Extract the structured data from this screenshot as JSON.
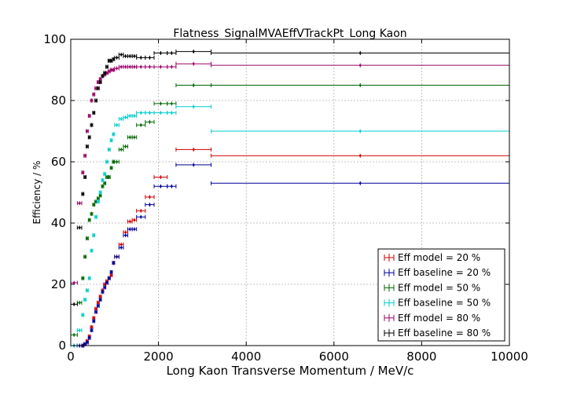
{
  "chart_data": {
    "type": "scatter",
    "title": "Flatness_SignalMVAEffVTrackPt_Long Kaon",
    "xlabel": "Long Kaon Transverse Momentum / MeV/c",
    "ylabel": "Efficiency / %",
    "xlim": [
      0,
      10000
    ],
    "ylim": [
      0,
      100
    ],
    "xticks": [
      "0",
      "2000",
      "4000",
      "6000",
      "8000",
      "10000"
    ],
    "yticks": [
      "0",
      "20",
      "40",
      "60",
      "80",
      "100"
    ],
    "xtick_values": [
      0,
      2000,
      4000,
      6000,
      8000,
      10000
    ],
    "ytick_values": [
      0,
      20,
      40,
      60,
      80,
      100
    ],
    "grid": true,
    "legend_position": "lower-right",
    "x_bins": [
      [
        0,
        150
      ],
      [
        150,
        250
      ],
      [
        250,
        300
      ],
      [
        300,
        350
      ],
      [
        350,
        400
      ],
      [
        400,
        450
      ],
      [
        450,
        500
      ],
      [
        500,
        550
      ],
      [
        550,
        600
      ],
      [
        600,
        650
      ],
      [
        650,
        700
      ],
      [
        700,
        750
      ],
      [
        750,
        800
      ],
      [
        800,
        850
      ],
      [
        850,
        900
      ],
      [
        900,
        950
      ],
      [
        950,
        1000
      ],
      [
        1000,
        1100
      ],
      [
        1100,
        1200
      ],
      [
        1200,
        1300
      ],
      [
        1300,
        1400
      ],
      [
        1400,
        1500
      ],
      [
        1500,
        1700
      ],
      [
        1700,
        1900
      ],
      [
        1900,
        2200
      ],
      [
        2200,
        2400
      ],
      [
        2400,
        3200
      ],
      [
        3200,
        10000
      ]
    ],
    "series": [
      {
        "name": "Eff model = 20 %",
        "color": "#cc0000",
        "bins": [
          [
            0,
            150,
            0
          ],
          [
            150,
            250,
            0
          ],
          [
            250,
            300,
            0
          ],
          [
            300,
            350,
            0.5
          ],
          [
            350,
            400,
            1.5
          ],
          [
            400,
            450,
            3
          ],
          [
            450,
            500,
            6
          ],
          [
            500,
            550,
            9
          ],
          [
            550,
            600,
            12
          ],
          [
            600,
            650,
            14
          ],
          [
            650,
            700,
            16
          ],
          [
            700,
            750,
            18
          ],
          [
            750,
            800,
            20
          ],
          [
            800,
            850,
            21
          ],
          [
            850,
            900,
            22
          ],
          [
            900,
            950,
            23
          ],
          [
            950,
            1000,
            27
          ],
          [
            1000,
            1100,
            29
          ],
          [
            1100,
            1200,
            33
          ],
          [
            1200,
            1300,
            37
          ],
          [
            1300,
            1400,
            40.5
          ],
          [
            1400,
            1500,
            41
          ],
          [
            1500,
            1700,
            44
          ],
          [
            1700,
            1900,
            48.5
          ],
          [
            1900,
            2200,
            55
          ],
          [
            2400,
            3200,
            64
          ],
          [
            3200,
            10000,
            62
          ]
        ]
      },
      {
        "name": "Eff baseline = 20 %",
        "color": "#000099",
        "bins": [
          [
            0,
            150,
            0
          ],
          [
            150,
            250,
            0
          ],
          [
            250,
            300,
            0
          ],
          [
            300,
            350,
            0.5
          ],
          [
            350,
            400,
            1
          ],
          [
            400,
            450,
            2.5
          ],
          [
            450,
            500,
            5
          ],
          [
            500,
            550,
            8
          ],
          [
            550,
            600,
            11
          ],
          [
            600,
            650,
            13
          ],
          [
            650,
            700,
            15
          ],
          [
            700,
            750,
            17.5
          ],
          [
            750,
            800,
            19
          ],
          [
            800,
            850,
            20.5
          ],
          [
            850,
            900,
            22
          ],
          [
            900,
            950,
            24
          ],
          [
            950,
            1000,
            27
          ],
          [
            1000,
            1100,
            29
          ],
          [
            1100,
            1200,
            32
          ],
          [
            1200,
            1300,
            36
          ],
          [
            1300,
            1400,
            38
          ],
          [
            1400,
            1500,
            38
          ],
          [
            1500,
            1700,
            42
          ],
          [
            1700,
            1900,
            46
          ],
          [
            1900,
            2200,
            52
          ],
          [
            2200,
            2400,
            52
          ],
          [
            2400,
            3200,
            59
          ],
          [
            3200,
            10000,
            53
          ]
        ]
      },
      {
        "name": "Eff model = 50 %",
        "color": "#006600",
        "bins": [
          [
            0,
            150,
            3.5
          ],
          [
            150,
            250,
            14
          ],
          [
            250,
            300,
            22
          ],
          [
            300,
            350,
            29
          ],
          [
            350,
            400,
            35
          ],
          [
            400,
            450,
            41
          ],
          [
            450,
            500,
            43
          ],
          [
            500,
            550,
            46
          ],
          [
            550,
            600,
            47
          ],
          [
            600,
            650,
            48
          ],
          [
            650,
            700,
            49
          ],
          [
            700,
            750,
            52
          ],
          [
            750,
            800,
            53
          ],
          [
            800,
            850,
            55
          ],
          [
            850,
            900,
            55
          ],
          [
            900,
            950,
            58
          ],
          [
            950,
            1000,
            60
          ],
          [
            1000,
            1100,
            60
          ],
          [
            1100,
            1200,
            64
          ],
          [
            1200,
            1300,
            65
          ],
          [
            1300,
            1400,
            68
          ],
          [
            1400,
            1500,
            68
          ],
          [
            1500,
            1700,
            72
          ],
          [
            1700,
            1900,
            73
          ],
          [
            1900,
            2200,
            79
          ],
          [
            2200,
            2400,
            79
          ],
          [
            2400,
            3200,
            85
          ],
          [
            3200,
            10000,
            85
          ]
        ]
      },
      {
        "name": "Eff baseline = 50 %",
        "color": "#00cccc",
        "bins": [
          [
            0,
            150,
            0
          ],
          [
            150,
            250,
            5
          ],
          [
            250,
            300,
            10
          ],
          [
            300,
            350,
            15
          ],
          [
            350,
            400,
            18
          ],
          [
            400,
            450,
            22
          ],
          [
            450,
            500,
            31
          ],
          [
            500,
            550,
            36
          ],
          [
            550,
            600,
            42
          ],
          [
            600,
            650,
            47
          ],
          [
            650,
            700,
            50
          ],
          [
            700,
            750,
            54
          ],
          [
            750,
            800,
            56
          ],
          [
            800,
            850,
            60
          ],
          [
            850,
            900,
            64
          ],
          [
            900,
            950,
            67
          ],
          [
            950,
            1000,
            69
          ],
          [
            1000,
            1100,
            72
          ],
          [
            1100,
            1200,
            74
          ],
          [
            1200,
            1300,
            74.5
          ],
          [
            1300,
            1400,
            75
          ],
          [
            1400,
            1500,
            75
          ],
          [
            1500,
            1700,
            76
          ],
          [
            1700,
            1900,
            76
          ],
          [
            1900,
            2200,
            76
          ],
          [
            2200,
            2400,
            76
          ],
          [
            2400,
            3200,
            78
          ],
          [
            3200,
            10000,
            70
          ]
        ]
      },
      {
        "name": "Eff model = 80 %",
        "color": "#990066",
        "bins": [
          [
            0,
            150,
            20.5
          ],
          [
            150,
            250,
            46.5
          ],
          [
            250,
            300,
            56.5
          ],
          [
            300,
            350,
            62
          ],
          [
            350,
            400,
            70
          ],
          [
            400,
            450,
            75
          ],
          [
            450,
            500,
            80
          ],
          [
            500,
            550,
            82
          ],
          [
            550,
            600,
            84
          ],
          [
            600,
            650,
            86
          ],
          [
            650,
            700,
            87
          ],
          [
            700,
            750,
            88
          ],
          [
            750,
            800,
            88.5
          ],
          [
            800,
            850,
            89
          ],
          [
            850,
            900,
            89.5
          ],
          [
            900,
            950,
            90
          ],
          [
            950,
            1000,
            90
          ],
          [
            1000,
            1100,
            90.5
          ],
          [
            1100,
            1200,
            91
          ],
          [
            1200,
            1300,
            91
          ],
          [
            1300,
            1400,
            91
          ],
          [
            1400,
            1500,
            91
          ],
          [
            1500,
            1700,
            91
          ],
          [
            1700,
            1900,
            91
          ],
          [
            1900,
            2200,
            91
          ],
          [
            2200,
            2400,
            91
          ],
          [
            2400,
            3200,
            92
          ],
          [
            3200,
            10000,
            91.5
          ]
        ]
      },
      {
        "name": "Eff baseline = 80 %",
        "color": "#000000",
        "bins": [
          [
            0,
            150,
            13.5
          ],
          [
            150,
            250,
            38.5
          ],
          [
            250,
            300,
            49.5
          ],
          [
            300,
            350,
            55
          ],
          [
            350,
            400,
            65
          ],
          [
            400,
            450,
            68
          ],
          [
            450,
            500,
            72
          ],
          [
            500,
            550,
            76
          ],
          [
            550,
            600,
            80
          ],
          [
            600,
            650,
            84
          ],
          [
            650,
            700,
            86
          ],
          [
            700,
            750,
            88
          ],
          [
            750,
            800,
            89
          ],
          [
            800,
            850,
            91
          ],
          [
            850,
            900,
            93
          ],
          [
            900,
            950,
            93
          ],
          [
            950,
            1000,
            93.5
          ],
          [
            1000,
            1100,
            94
          ],
          [
            1100,
            1200,
            95
          ],
          [
            1200,
            1300,
            94.5
          ],
          [
            1300,
            1400,
            94.5
          ],
          [
            1400,
            1500,
            94.5
          ],
          [
            1500,
            1700,
            94
          ],
          [
            1700,
            1900,
            94
          ],
          [
            1900,
            2200,
            95.5
          ],
          [
            2200,
            2400,
            95.5
          ],
          [
            2400,
            3200,
            96
          ],
          [
            3200,
            10000,
            95.5
          ]
        ]
      }
    ]
  }
}
